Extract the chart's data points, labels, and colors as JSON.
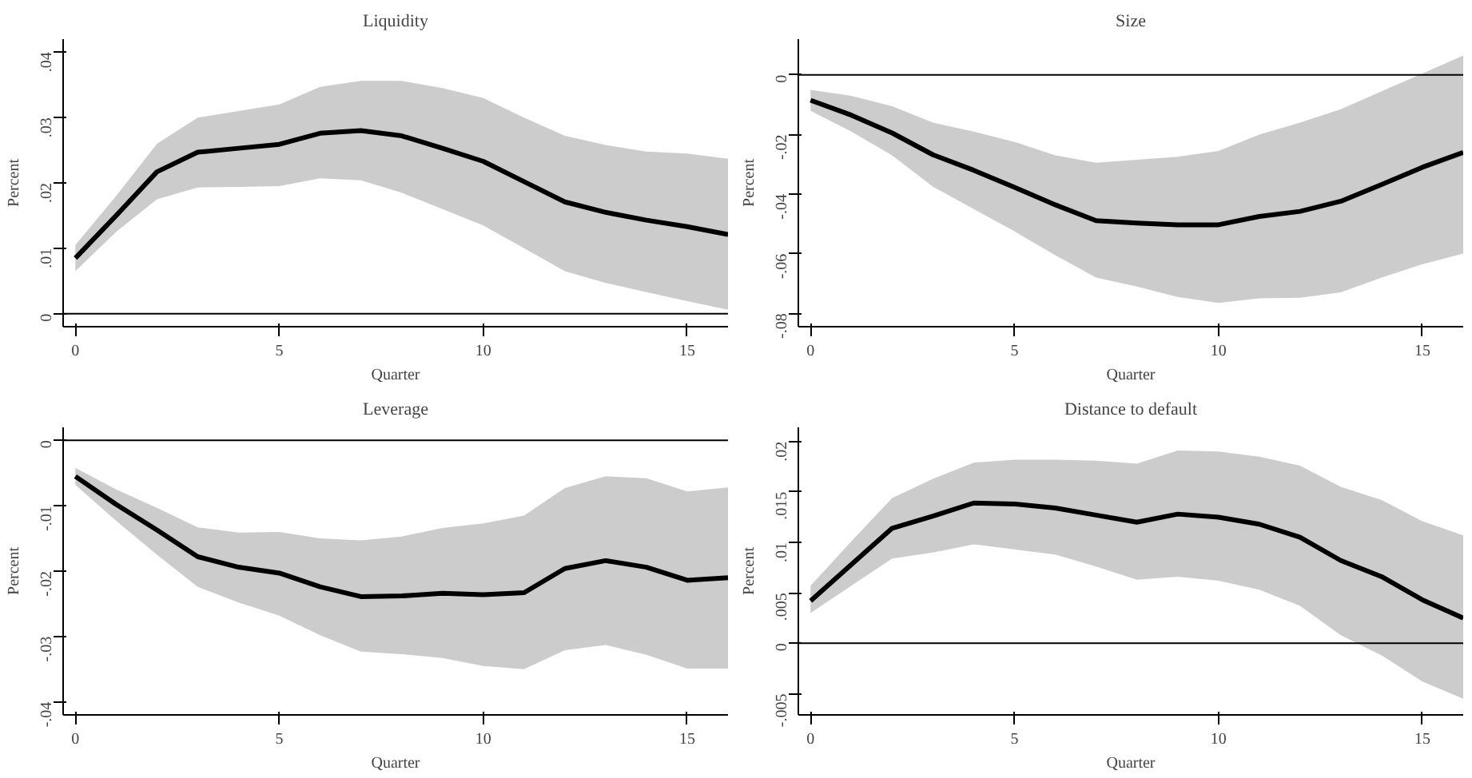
{
  "chart_data": [
    {
      "type": "line",
      "title": "Liquidity",
      "xlabel": "Quarter",
      "ylabel": "Percent",
      "x": [
        0,
        1,
        2,
        3,
        4,
        5,
        6,
        7,
        8,
        9,
        10,
        11,
        12,
        13,
        14,
        15,
        16
      ],
      "xlim": [
        -0.3,
        16
      ],
      "xticks": [
        0,
        5,
        10,
        15
      ],
      "ylim": [
        -0.002,
        0.042
      ],
      "yticks": [
        {
          "value": 0,
          "label": "0"
        },
        {
          "value": 0.01,
          "label": ".01"
        },
        {
          "value": 0.02,
          "label": ".02"
        },
        {
          "value": 0.03,
          "label": ".03"
        },
        {
          "value": 0.04,
          "label": ".04"
        }
      ],
      "grid": false,
      "ref_lines": [
        {
          "axis": "y",
          "value": 0,
          "color": "#000000"
        }
      ],
      "series": [
        {
          "color": "#000000",
          "values": [
            0.0085,
            0.015,
            0.0217,
            0.0247,
            0.0253,
            0.0259,
            0.0276,
            0.028,
            0.0272,
            0.0253,
            0.0233,
            0.0202,
            0.0171,
            0.0155,
            0.0143,
            0.0133,
            0.0121
          ],
          "upper": [
            0.0105,
            0.018,
            0.026,
            0.03,
            0.031,
            0.032,
            0.0347,
            0.0356,
            0.0356,
            0.0345,
            0.033,
            0.03,
            0.0272,
            0.0258,
            0.0248,
            0.0245,
            0.0237
          ],
          "lower": [
            0.0065,
            0.0125,
            0.0175,
            0.0193,
            0.0194,
            0.0195,
            0.0207,
            0.0204,
            0.0185,
            0.016,
            0.0135,
            0.01,
            0.0065,
            0.0047,
            0.0033,
            0.0019,
            0.0006
          ]
        }
      ]
    },
    {
      "type": "line",
      "title": "Size",
      "xlabel": "Quarter",
      "ylabel": "Percent",
      "x": [
        0,
        1,
        2,
        3,
        4,
        5,
        6,
        7,
        8,
        9,
        10,
        11,
        12,
        13,
        14,
        15,
        16
      ],
      "xlim": [
        -0.3,
        16
      ],
      "xticks": [
        0,
        5,
        10,
        15
      ],
      "ylim": [
        -0.0845,
        0.012
      ],
      "yticks": [
        {
          "value": -0.08,
          "label": "-.08"
        },
        {
          "value": -0.06,
          "label": "-.06"
        },
        {
          "value": -0.04,
          "label": "-.04"
        },
        {
          "value": -0.02,
          "label": "-.02"
        },
        {
          "value": 0,
          "label": "0"
        }
      ],
      "grid": false,
      "ref_lines": [
        {
          "axis": "y",
          "value": 0,
          "color": "#000000"
        }
      ],
      "series": [
        {
          "color": "#000000",
          "values": [
            -0.0085,
            -0.0135,
            -0.0195,
            -0.0268,
            -0.032,
            -0.0377,
            -0.0436,
            -0.0489,
            -0.0497,
            -0.0503,
            -0.0503,
            -0.0475,
            -0.0458,
            -0.0424,
            -0.0368,
            -0.031,
            -0.026
          ],
          "upper": [
            -0.005,
            -0.007,
            -0.0105,
            -0.016,
            -0.019,
            -0.0225,
            -0.027,
            -0.0295,
            -0.0285,
            -0.0275,
            -0.0255,
            -0.02,
            -0.016,
            -0.0115,
            -0.0055,
            0.0005,
            0.0065
          ],
          "lower": [
            -0.012,
            -0.019,
            -0.027,
            -0.0375,
            -0.045,
            -0.0525,
            -0.0605,
            -0.068,
            -0.071,
            -0.0745,
            -0.0765,
            -0.075,
            -0.0748,
            -0.073,
            -0.068,
            -0.0635,
            -0.06
          ]
        }
      ]
    },
    {
      "type": "line",
      "title": "Leverage",
      "xlabel": "Quarter",
      "ylabel": "Percent",
      "x": [
        0,
        1,
        2,
        3,
        4,
        5,
        6,
        7,
        8,
        9,
        10,
        11,
        12,
        13,
        14,
        15,
        16
      ],
      "xlim": [
        -0.3,
        16
      ],
      "xticks": [
        0,
        5,
        10,
        15
      ],
      "ylim": [
        -0.042,
        0.002
      ],
      "yticks": [
        {
          "value": -0.04,
          "label": "-.04"
        },
        {
          "value": -0.03,
          "label": "-.03"
        },
        {
          "value": -0.02,
          "label": "-.02"
        },
        {
          "value": -0.01,
          "label": "-.01"
        },
        {
          "value": 0,
          "label": "0"
        }
      ],
      "grid": false,
      "ref_lines": [
        {
          "axis": "y",
          "value": 0,
          "color": "#000000"
        }
      ],
      "series": [
        {
          "color": "#000000",
          "values": [
            -0.0055,
            -0.0098,
            -0.0137,
            -0.0178,
            -0.0194,
            -0.0203,
            -0.0224,
            -0.0239,
            -0.0238,
            -0.0234,
            -0.0236,
            -0.0233,
            -0.0196,
            -0.0184,
            -0.0194,
            -0.0214,
            -0.021
          ],
          "upper": [
            -0.0042,
            -0.0075,
            -0.0103,
            -0.0133,
            -0.0141,
            -0.014,
            -0.015,
            -0.0153,
            -0.0147,
            -0.0134,
            -0.0127,
            -0.0115,
            -0.0073,
            -0.0055,
            -0.0058,
            -0.0078,
            -0.0072
          ],
          "lower": [
            -0.0068,
            -0.0123,
            -0.0175,
            -0.0224,
            -0.0248,
            -0.0268,
            -0.0298,
            -0.0323,
            -0.0327,
            -0.0333,
            -0.0345,
            -0.035,
            -0.0321,
            -0.0313,
            -0.0328,
            -0.0349,
            -0.0349
          ]
        }
      ]
    },
    {
      "type": "line",
      "title": "Distance to default",
      "xlabel": "Quarter",
      "ylabel": "Percent",
      "x": [
        0,
        1,
        2,
        3,
        4,
        5,
        6,
        7,
        8,
        9,
        10,
        11,
        12,
        13,
        14,
        15,
        16
      ],
      "xlim": [
        -0.3,
        16
      ],
      "xticks": [
        0,
        5,
        10,
        15
      ],
      "ylim": [
        -0.0071,
        0.0214
      ],
      "yticks": [
        {
          "value": -0.005,
          "label": "-.005"
        },
        {
          "value": 0,
          "label": "0"
        },
        {
          "value": 0.005,
          "label": ".005"
        },
        {
          "value": 0.01,
          "label": ".01"
        },
        {
          "value": 0.015,
          "label": ".015"
        },
        {
          "value": 0.02,
          "label": ".02"
        }
      ],
      "grid": false,
      "ref_lines": [
        {
          "axis": "y",
          "value": 0,
          "color": "#000000"
        }
      ],
      "series": [
        {
          "color": "#000000",
          "values": [
            0.0042,
            0.0078,
            0.0114,
            0.0126,
            0.0139,
            0.0138,
            0.0134,
            0.0127,
            0.012,
            0.0128,
            0.0125,
            0.0118,
            0.0105,
            0.0082,
            0.0066,
            0.0043,
            0.0025
          ],
          "upper": [
            0.0057,
            0.0101,
            0.0144,
            0.0163,
            0.0179,
            0.0182,
            0.0182,
            0.0181,
            0.0178,
            0.0191,
            0.019,
            0.0185,
            0.0176,
            0.0155,
            0.0142,
            0.0121,
            0.0107
          ],
          "lower": [
            0.003,
            0.0057,
            0.0084,
            0.009,
            0.0098,
            0.0093,
            0.0088,
            0.0076,
            0.0063,
            0.0066,
            0.0062,
            0.0053,
            0.0037,
            0.0008,
            -0.0012,
            -0.0038,
            -0.0055
          ]
        }
      ]
    }
  ]
}
